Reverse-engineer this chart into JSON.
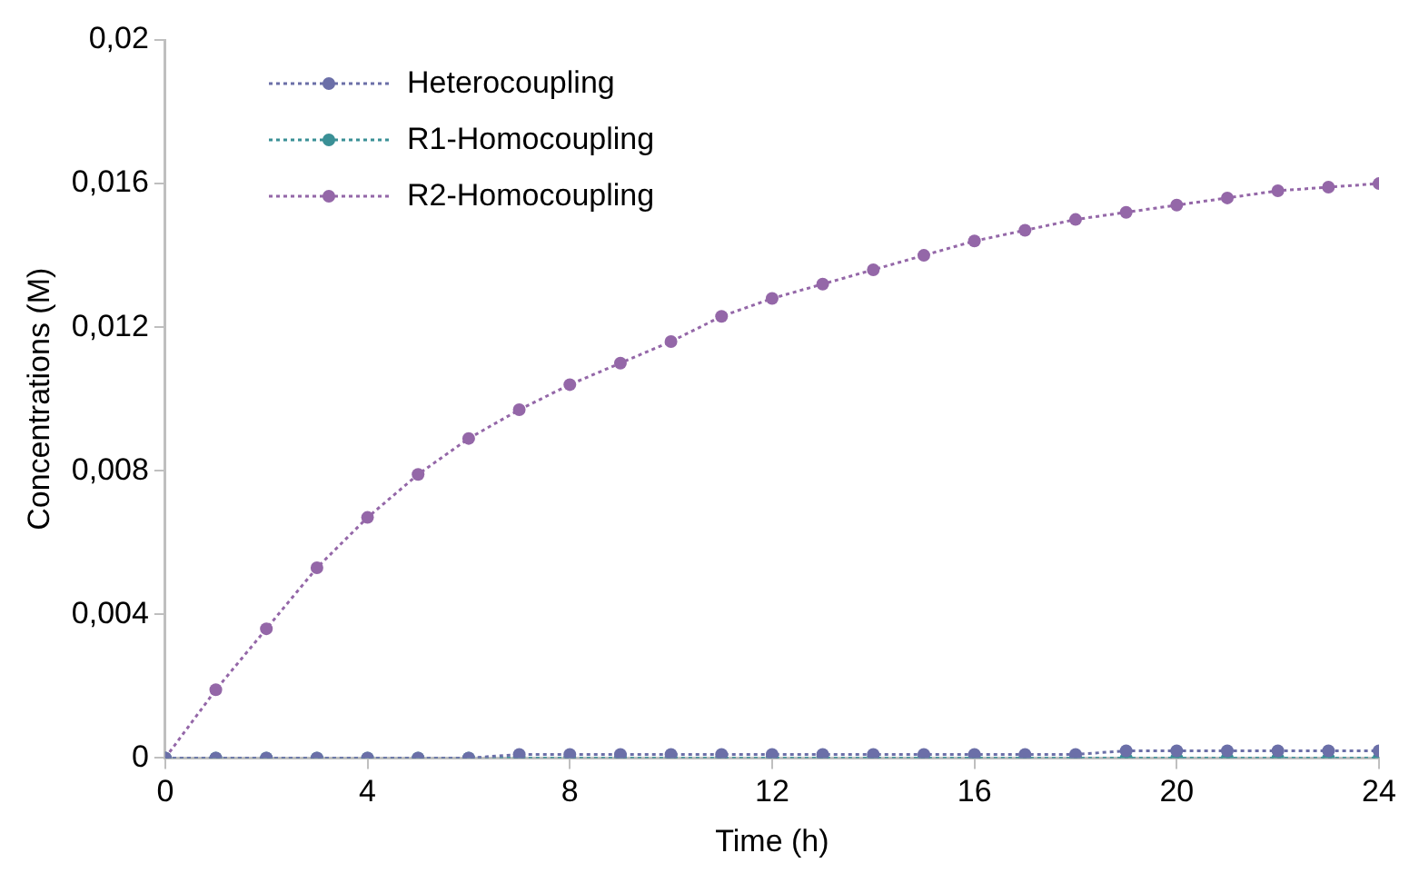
{
  "chart_data": {
    "type": "line",
    "xlabel": "Time (h)",
    "ylabel": "Concentrations (M)",
    "x": [
      0,
      1,
      2,
      3,
      4,
      5,
      6,
      7,
      8,
      9,
      10,
      11,
      12,
      13,
      14,
      15,
      16,
      17,
      18,
      19,
      20,
      21,
      22,
      23,
      24
    ],
    "xlim": [
      0,
      24
    ],
    "xticks": [
      0,
      4,
      8,
      12,
      16,
      20,
      24
    ],
    "ylim": [
      0,
      0.02
    ],
    "yticks": [
      0,
      {
        "value": 0.004,
        "label": "0,004"
      },
      {
        "value": 0.008,
        "label": "0,008"
      },
      {
        "value": 0.012,
        "label": "0,012"
      },
      {
        "value": 0.016,
        "label": "0,016"
      },
      {
        "value": 0.02,
        "label": "0,02"
      }
    ],
    "grid": false,
    "legend": "top left",
    "marker": "circle",
    "line_style": "dotted",
    "series": [
      {
        "name": "Heterocoupling",
        "color": "#6b6fa8",
        "values": [
          0,
          0,
          0,
          0,
          0,
          0,
          0,
          0.0001,
          0.0001,
          0.0001,
          0.0001,
          0.0001,
          0.0001,
          0.0001,
          0.0001,
          0.0001,
          0.0001,
          0.0001,
          0.0001,
          0.0002,
          0.0002,
          0.0002,
          0.0002,
          0.0002,
          0.0002
        ]
      },
      {
        "name": "R1-Homocoupling",
        "color": "#3a9096",
        "values": [
          0,
          0,
          0,
          0,
          0,
          0,
          0,
          0,
          0,
          0,
          0,
          0,
          0,
          0,
          0,
          0,
          0,
          0,
          0,
          0,
          0,
          0,
          0,
          0,
          0
        ]
      },
      {
        "name": "R2-Homocoupling",
        "color": "#9467a8",
        "values": [
          0,
          0.0019,
          0.0036,
          0.0053,
          0.0067,
          0.0079,
          0.0089,
          0.0097,
          0.0104,
          0.011,
          0.0116,
          0.0123,
          0.0128,
          0.0132,
          0.0136,
          0.014,
          0.0144,
          0.0147,
          0.015,
          0.0152,
          0.0154,
          0.0156,
          0.0158,
          0.0159,
          0.016
        ]
      }
    ]
  }
}
